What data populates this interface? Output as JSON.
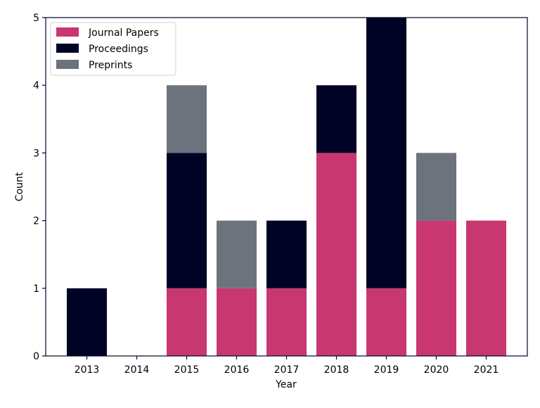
{
  "chart_data": {
    "type": "bar",
    "stacked": true,
    "categories": [
      "2013",
      "2014",
      "2015",
      "2016",
      "2017",
      "2018",
      "2019",
      "2020",
      "2021"
    ],
    "series": [
      {
        "name": "Journal Papers",
        "color": "#c8376f",
        "values": [
          0,
          0,
          1,
          1,
          1,
          3,
          1,
          2,
          2
        ]
      },
      {
        "name": "Proceedings",
        "color": "#000326",
        "values": [
          1,
          0,
          2,
          0,
          1,
          1,
          4,
          0,
          0
        ]
      },
      {
        "name": "Preprints",
        "color": "#6c737c",
        "values": [
          0,
          0,
          1,
          1,
          0,
          0,
          0,
          1,
          0
        ]
      }
    ],
    "xlabel": "Year",
    "ylabel": "Count",
    "ylim": [
      0,
      5
    ],
    "yticks": [
      0,
      1,
      2,
      3,
      4,
      5
    ],
    "grid": false,
    "legend_position": "top-left",
    "axis_color": "#000326"
  }
}
